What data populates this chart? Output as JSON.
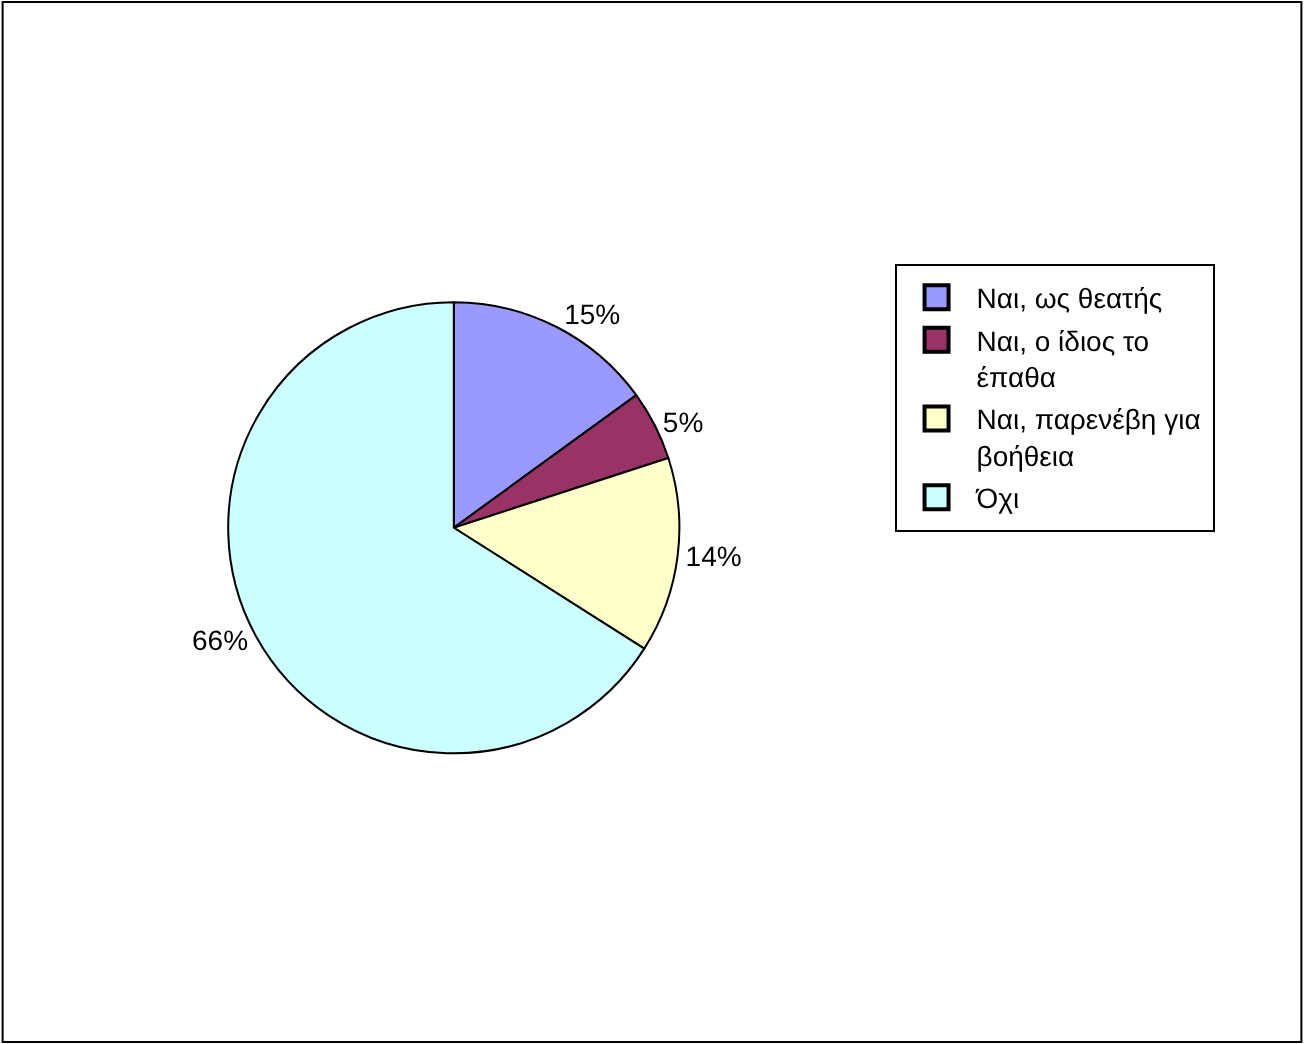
{
  "chart_data": {
    "type": "pie",
    "categories": [
      "Ναι, ως θεατής",
      "Ναι, ο ίδιος το έπαθα",
      "Ναι, παρενέβη για βοήθεια",
      "Όχι"
    ],
    "values": [
      15,
      5,
      14,
      66
    ],
    "colors": [
      "#9999ff",
      "#993366",
      "#ffffcc",
      "#ccffff"
    ],
    "value_labels": [
      "15%",
      "5%",
      "14%",
      "66%"
    ],
    "legend": "right"
  }
}
